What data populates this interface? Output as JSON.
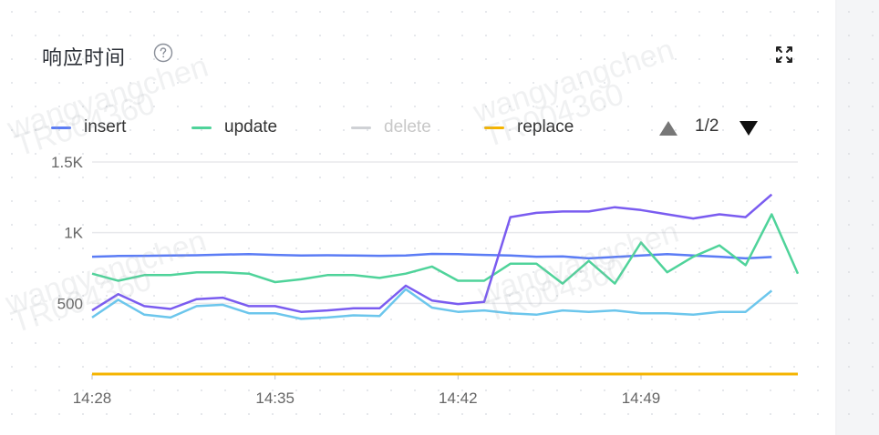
{
  "panel": {
    "title": "响应时间"
  },
  "legend": {
    "pager": "1/2"
  },
  "watermarks": [
    "wangyangchen",
    "TR004360"
  ],
  "colors": {
    "insert": "#5b7cf5",
    "update": "#4fd39a",
    "delete": "#cfd1d5",
    "replace": "#f5b400",
    "series_extra_1": "#7a5cf0",
    "series_extra_2": "#6cc6ec",
    "grid": "#e8e9ec",
    "axis_text": "#666666"
  },
  "chart_data": {
    "type": "line",
    "x_tick_labels": [
      "14:28",
      "14:35",
      "14:42",
      "14:49"
    ],
    "x_tick_index": [
      0,
      7,
      14,
      21
    ],
    "y_ticks": [
      {
        "value": 500,
        "label": "500"
      },
      {
        "value": 1000,
        "label": "1K"
      },
      {
        "value": 1500,
        "label": "1.5K"
      }
    ],
    "ylim": [
      0,
      1500
    ],
    "series": [
      {
        "name": "insert",
        "key": "insert",
        "visible": true,
        "values": [
          830,
          835,
          836,
          838,
          840,
          845,
          848,
          843,
          838,
          840,
          838,
          836,
          838,
          850,
          848,
          843,
          838,
          830,
          832,
          818,
          828,
          838,
          848,
          838,
          830,
          818,
          828
        ]
      },
      {
        "name": "update",
        "key": "update",
        "visible": true,
        "values": [
          710,
          660,
          700,
          700,
          720,
          720,
          710,
          650,
          670,
          700,
          700,
          680,
          710,
          760,
          660,
          660,
          780,
          780,
          640,
          800,
          640,
          930,
          720,
          830,
          910,
          770,
          1130,
          710
        ]
      },
      {
        "name": "delete",
        "key": "delete",
        "visible": false,
        "values": []
      },
      {
        "name": "replace",
        "key": "replace",
        "visible": true,
        "values": [
          0,
          0,
          0,
          0,
          0,
          0,
          0,
          0,
          0,
          0,
          0,
          0,
          0,
          0,
          0,
          0,
          0,
          0,
          0,
          0,
          0,
          0,
          0,
          0,
          0,
          0,
          0,
          0
        ]
      },
      {
        "key": "series_extra_1",
        "visible": true,
        "values": [
          450,
          565,
          480,
          460,
          530,
          540,
          480,
          480,
          440,
          450,
          465,
          465,
          625,
          520,
          495,
          510,
          1110,
          1140,
          1150,
          1150,
          1180,
          1160,
          1130,
          1100,
          1130,
          1110,
          1270
        ]
      },
      {
        "key": "series_extra_2",
        "visible": true,
        "values": [
          400,
          525,
          420,
          400,
          480,
          490,
          430,
          430,
          390,
          400,
          415,
          410,
          600,
          470,
          440,
          450,
          430,
          420,
          450,
          440,
          450,
          430,
          430,
          420,
          440,
          440,
          590
        ]
      }
    ]
  }
}
